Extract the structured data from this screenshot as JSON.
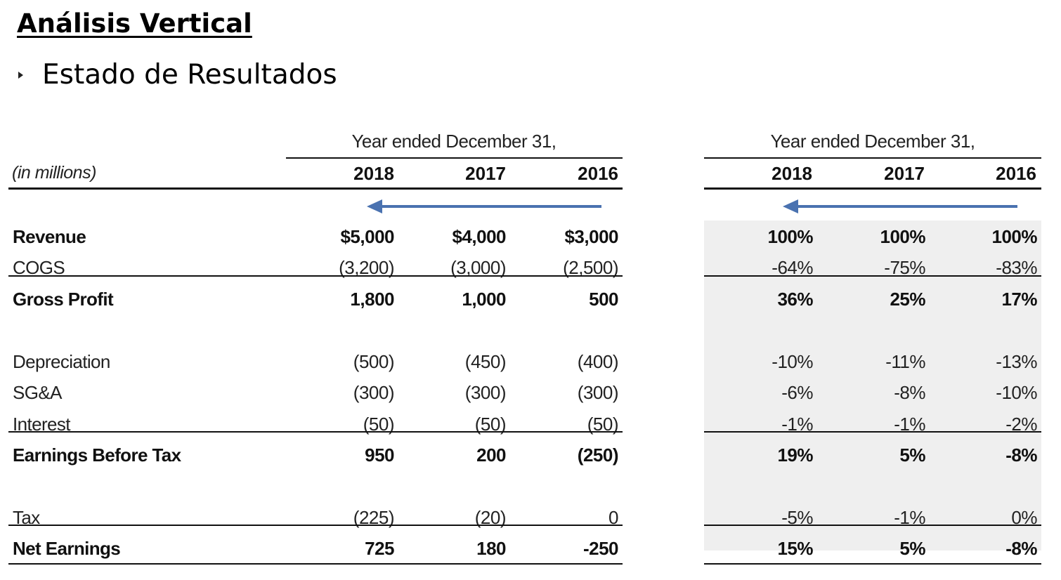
{
  "title": "Análisis Vertical",
  "subtitle": "Estado de Resultados",
  "header": {
    "period_left": "Year ended December 31,",
    "period_right": "Year ended December 31,",
    "units": "(in millions)",
    "years": [
      "2018",
      "2017",
      "2016"
    ]
  },
  "rows": [
    {
      "label": "Revenue",
      "bold": true,
      "values": [
        "$5,000",
        "$4,000",
        "$3,000"
      ],
      "pct": [
        "100%",
        "100%",
        "100%"
      ]
    },
    {
      "label": "COGS",
      "bold": false,
      "values": [
        "(3,200)",
        "(3,000)",
        "(2,500)"
      ],
      "pct": [
        "-64%",
        "-75%",
        "-83%"
      ]
    },
    {
      "label": "Gross Profit",
      "bold": true,
      "values": [
        "1,800",
        "1,000",
        "500"
      ],
      "pct": [
        "36%",
        "25%",
        "17%"
      ]
    },
    {
      "label": "Depreciation",
      "bold": false,
      "values": [
        "(500)",
        "(450)",
        "(400)"
      ],
      "pct": [
        "-10%",
        "-11%",
        "-13%"
      ]
    },
    {
      "label": "SG&A",
      "bold": false,
      "values": [
        "(300)",
        "(300)",
        "(300)"
      ],
      "pct": [
        "-6%",
        "-8%",
        "-10%"
      ]
    },
    {
      "label": "Interest",
      "bold": false,
      "values": [
        "(50)",
        "(50)",
        "(50)"
      ],
      "pct": [
        "-1%",
        "-1%",
        "-2%"
      ]
    },
    {
      "label": "Earnings Before Tax",
      "bold": true,
      "values": [
        "950",
        "200",
        "(250)"
      ],
      "pct": [
        "19%",
        "5%",
        "-8%"
      ]
    },
    {
      "label": "Tax",
      "bold": false,
      "values": [
        "(225)",
        "(20)",
        "0"
      ],
      "pct": [
        "-5%",
        "-1%",
        "0%"
      ]
    },
    {
      "label": "Net Earnings",
      "bold": true,
      "values": [
        "725",
        "180",
        "-250"
      ],
      "pct": [
        "15%",
        "5%",
        "-8%"
      ]
    }
  ],
  "colors": {
    "arrow": "#4a72b0",
    "shade": "#efefef"
  }
}
